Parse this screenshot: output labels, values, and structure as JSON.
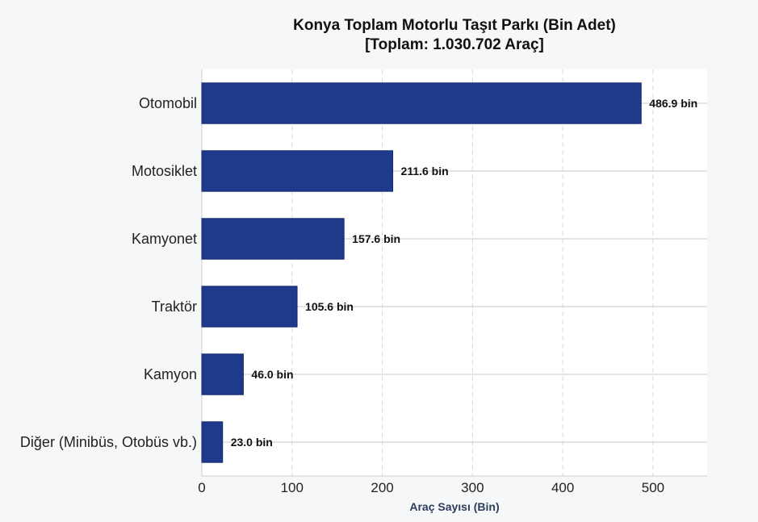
{
  "chart_data": {
    "type": "bar",
    "orientation": "horizontal",
    "title_line1": "Konya Toplam Motorlu Taşıt Parkı (Bin Adet)",
    "title_line2": "[Toplam: 1.030.702 Araç]",
    "xlabel": "Araç Sayısı (Bin)",
    "ylabel": "",
    "categories": [
      "Otomobil",
      "Motosiklet",
      "Kamyonet",
      "Traktör",
      "Kamyon",
      "Diğer (Minibüs, Otobüs vb.)"
    ],
    "values": [
      486.9,
      211.6,
      157.6,
      105.6,
      46.0,
      23.0
    ],
    "value_labels": [
      "486.9 bin",
      "211.6 bin",
      "157.6 bin",
      "105.6 bin",
      "46.0 bin",
      "23.0 bin"
    ],
    "xlim": [
      0,
      560
    ],
    "xticks": [
      0,
      100,
      200,
      300,
      400,
      500
    ],
    "grid": true,
    "bar_color": "#1f3a8a"
  }
}
